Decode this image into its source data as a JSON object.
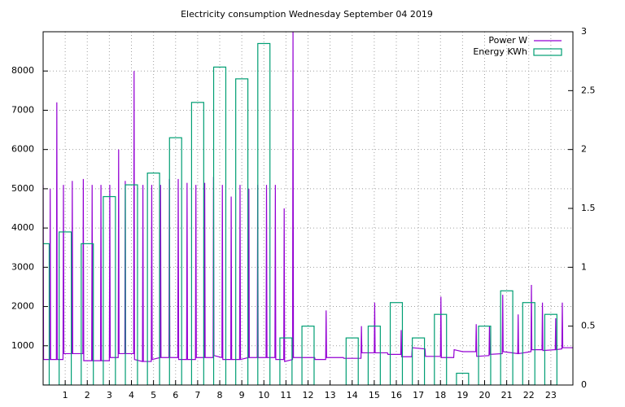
{
  "chart_data": {
    "type": "line",
    "title": "Electricity consumption Wednesday September 04 2019",
    "xlim": [
      0,
      24
    ],
    "xticks": [
      1,
      2,
      3,
      4,
      5,
      6,
      7,
      8,
      9,
      10,
      11,
      12,
      13,
      14,
      15,
      16,
      17,
      18,
      19,
      20,
      21,
      22,
      23
    ],
    "ylim": [
      0,
      9000
    ],
    "yticks": [
      1000,
      2000,
      3000,
      4000,
      5000,
      6000,
      7000,
      8000
    ],
    "y2lim": [
      0,
      3
    ],
    "y2ticks": [
      0,
      0.5,
      1,
      1.5,
      2,
      2.5,
      3
    ],
    "grid": true,
    "legend": "top-right",
    "series": [
      {
        "name": "Power W",
        "color": "#9400d3",
        "x": [
          0,
          0.02,
          0.3,
          0.32,
          0.34,
          0.6,
          0.62,
          0.64,
          0.9,
          0.92,
          0.94,
          1.3,
          1.32,
          1.34,
          1.8,
          1.82,
          1.84,
          2.2,
          2.22,
          2.24,
          2.6,
          2.62,
          2.64,
          3.0,
          3.02,
          3.04,
          3.4,
          3.42,
          3.44,
          3.7,
          3.72,
          3.74,
          4.1,
          4.12,
          4.14,
          4.5,
          4.52,
          4.54,
          4.9,
          4.92,
          4.94,
          5.3,
          5.32,
          5.34,
          5.7,
          5.72,
          5.74,
          6.1,
          6.12,
          6.14,
          6.5,
          6.52,
          6.54,
          6.9,
          6.92,
          6.94,
          7.3,
          7.32,
          7.34,
          7.7,
          7.72,
          7.74,
          8.1,
          8.12,
          8.14,
          8.5,
          8.52,
          8.54,
          8.9,
          8.92,
          8.94,
          9.3,
          9.32,
          9.34,
          9.7,
          9.72,
          9.74,
          10.1,
          10.12,
          10.14,
          10.5,
          10.52,
          10.54,
          10.9,
          10.92,
          10.94,
          11.3,
          11.32,
          11.34,
          12.0,
          12.3,
          12.32,
          12.8,
          12.82,
          12.84,
          13.6,
          13.62,
          14.4,
          14.42,
          14.44,
          15.0,
          15.02,
          15.04,
          15.6,
          15.62,
          16.2,
          16.22,
          16.24,
          16.7,
          16.72,
          17.3,
          17.32,
          18.0,
          18.02,
          18.04,
          18.6,
          18.62,
          19.0,
          19.6,
          19.62,
          19.64,
          20.2,
          20.22,
          20.24,
          20.8,
          20.82,
          20.84,
          21.5,
          21.52,
          21.54,
          22.1,
          22.12,
          22.14,
          22.6,
          22.62,
          22.64,
          23.2,
          23.22,
          23.24,
          23.5,
          23.52,
          23.54,
          24
        ],
        "values": [
          5100,
          650,
          650,
          5000,
          650,
          650,
          7200,
          650,
          650,
          5100,
          800,
          800,
          5200,
          800,
          800,
          5250,
          620,
          620,
          5100,
          620,
          620,
          5100,
          620,
          620,
          5100,
          700,
          700,
          6000,
          800,
          800,
          5200,
          800,
          800,
          8000,
          650,
          600,
          5100,
          600,
          600,
          5100,
          650,
          700,
          5100,
          700,
          700,
          5250,
          700,
          700,
          5250,
          650,
          650,
          5150,
          650,
          650,
          5100,
          700,
          700,
          5150,
          700,
          700,
          5300,
          750,
          700,
          5100,
          650,
          650,
          4800,
          650,
          650,
          5100,
          650,
          700,
          5000,
          700,
          700,
          5100,
          700,
          700,
          5100,
          700,
          700,
          5100,
          650,
          650,
          4500,
          600,
          650,
          9000,
          700,
          700,
          700,
          650,
          650,
          1900,
          700,
          700,
          680,
          680,
          1500,
          820,
          820,
          2100,
          820,
          820,
          780,
          780,
          1400,
          720,
          720,
          950,
          920,
          730,
          730,
          2250,
          700,
          700,
          900,
          850,
          850,
          1550,
          730,
          750,
          1500,
          780,
          800,
          2300,
          850,
          800,
          1800,
          800,
          850,
          2550,
          900,
          900,
          2100,
          880,
          900,
          1700,
          900,
          920,
          2100,
          950,
          950
        ]
      },
      {
        "name": "Energy KWh",
        "color": "#009e73",
        "type": "bar",
        "axis": "y2",
        "x": [
          0,
          1,
          2,
          3,
          4,
          5,
          6,
          7,
          8,
          9,
          10,
          11,
          12,
          13,
          14,
          15,
          16,
          17,
          18,
          19,
          20,
          21,
          22,
          23
        ],
        "values": [
          1.2,
          1.3,
          1.2,
          1.6,
          1.7,
          1.8,
          2.1,
          2.4,
          2.7,
          2.6,
          2.9,
          0.4,
          0.5,
          0,
          0.4,
          0.5,
          0.7,
          0.4,
          0.6,
          0.1,
          0.5,
          0.8,
          0.7,
          0.6
        ]
      }
    ]
  }
}
